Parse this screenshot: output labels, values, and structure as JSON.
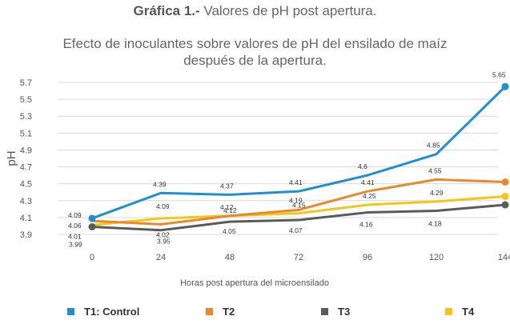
{
  "heading": {
    "bold": "Gráfica 1.-",
    "rest": " Valores de pH post apertura."
  },
  "subtitle_lines": [
    "Efecto de inoculantes sobre valores de pH del ensilado de maíz",
    "después de la apertura."
  ],
  "chart_data": {
    "type": "line",
    "title": "Efecto de inoculantes sobre valores de pH del ensilado de maíz después de la apertura.",
    "xlabel": "Horas post apertura del microensilado",
    "ylabel": "pH",
    "categories": [
      "0",
      "24",
      "48",
      "72",
      "96",
      "120",
      "144"
    ],
    "ylim": [
      3.9,
      5.7
    ],
    "yticks": [
      "3.9",
      "4.1",
      "4.3",
      "4.5",
      "4.7",
      "4.9",
      "5.1",
      "5.3",
      "5.5",
      "5.7"
    ],
    "grid": true,
    "legend_position": "bottom",
    "series": [
      {
        "name": "T1: Control",
        "color": "#1f8fcf",
        "values": [
          4.09,
          4.39,
          4.37,
          4.41,
          4.6,
          4.85,
          5.65
        ]
      },
      {
        "name": "T2",
        "color": "#e8892a",
        "values": [
          4.06,
          4.02,
          4.12,
          4.19,
          4.41,
          4.55,
          4.52
        ]
      },
      {
        "name": "T3",
        "color": "#5a5a5a",
        "values": [
          3.99,
          3.95,
          4.05,
          4.07,
          4.16,
          4.18,
          4.25
        ]
      },
      {
        "name": "T4",
        "color": "#f5c518",
        "values": [
          4.01,
          4.09,
          4.12,
          4.15,
          4.25,
          4.29,
          4.35
        ]
      }
    ]
  }
}
